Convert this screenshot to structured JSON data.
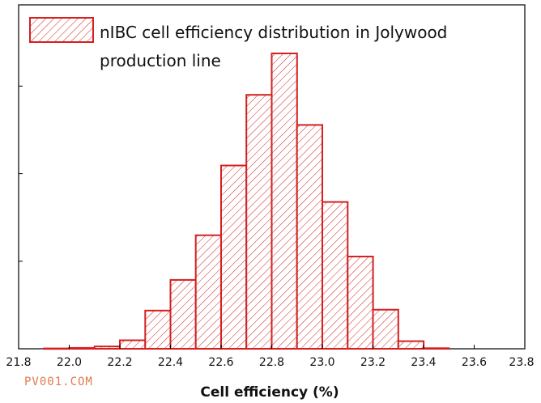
{
  "chart_data": {
    "type": "bar",
    "xlabel": "Cell efficiency (%)",
    "ylabel": "",
    "xlim": [
      21.8,
      23.8
    ],
    "ylim": [
      0,
      100
    ],
    "bin_width": 0.1,
    "x_ticks": [
      "21.8",
      "22.0",
      "22.2",
      "22.4",
      "22.6",
      "22.8",
      "23.0",
      "23.2",
      "23.4",
      "23.6",
      "23.8"
    ],
    "x_tick_values": [
      21.8,
      22.0,
      22.2,
      22.4,
      22.6,
      22.8,
      23.0,
      23.2,
      23.4,
      23.6,
      23.8
    ],
    "y_ticks_unlabeled": [
      0,
      30,
      60,
      90
    ],
    "bin_starts": [
      21.9,
      22.0,
      22.1,
      22.2,
      22.3,
      22.4,
      22.5,
      22.6,
      22.7,
      22.8,
      22.9,
      23.0,
      23.1,
      23.2,
      23.3,
      23.4
    ],
    "values": [
      0.1,
      0.3,
      0.8,
      2.9,
      13.1,
      23.6,
      38.9,
      62.8,
      87.0,
      101.2,
      76.7,
      50.3,
      31.6,
      13.4,
      2.6,
      0.2
    ],
    "legend": {
      "label_line1": "nIBC cell efficiency distribution in Jolywood",
      "label_line2": "production line",
      "placement": "top-left"
    },
    "grid": false,
    "colors": {
      "bar_stroke": "#d42020",
      "hatch": "#d42020",
      "bar_fill": "#ffffff",
      "axis": "#000000"
    }
  },
  "watermark": {
    "text": "PV001.COM",
    "color": "#e07a4f"
  }
}
